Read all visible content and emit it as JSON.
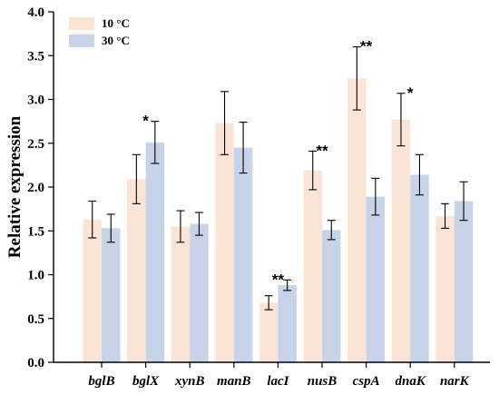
{
  "chart_data": {
    "type": "bar",
    "title": "",
    "xlabel": "",
    "ylabel": "Relative expression",
    "ylim": [
      0,
      4.0
    ],
    "yticks": [
      "0.0",
      "0.5",
      "1.0",
      "1.5",
      "2.0",
      "2.5",
      "3.0",
      "3.5",
      "4.0"
    ],
    "grid": false,
    "legend_position": "top-left",
    "categories": [
      "bglB",
      "bglX",
      "xynB",
      "manB",
      "lacI",
      "nusB",
      "cspA",
      "dnaK",
      "narK"
    ],
    "series": [
      {
        "name": "10 °C",
        "color": "#fbe4d5",
        "values": [
          1.63,
          2.09,
          1.55,
          2.73,
          0.68,
          2.19,
          3.24,
          2.77,
          1.67
        ],
        "errors": [
          0.21,
          0.28,
          0.18,
          0.36,
          0.08,
          0.22,
          0.36,
          0.3,
          0.14
        ]
      },
      {
        "name": "30 °C",
        "color": "#c7d3e8",
        "values": [
          1.53,
          2.51,
          1.58,
          2.45,
          0.88,
          1.51,
          1.89,
          2.14,
          1.84
        ],
        "errors": [
          0.16,
          0.24,
          0.13,
          0.29,
          0.06,
          0.11,
          0.21,
          0.23,
          0.22
        ]
      }
    ],
    "significance": [
      "",
      "*",
      "",
      "",
      "**",
      "**",
      "**",
      "*",
      ""
    ]
  }
}
